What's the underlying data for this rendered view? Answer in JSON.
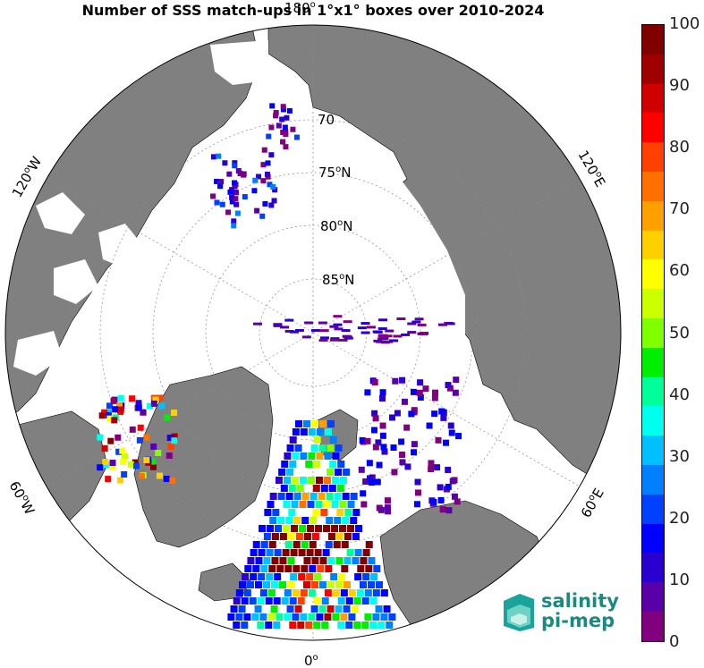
{
  "title": "Number of SSS match-ups in 1°x1° boxes over 2010-2024",
  "longitude_labels": {
    "top": "180",
    "left_upper": "120",
    "left_upper_dir": "W",
    "right_upper": "120",
    "right_upper_dir": "E",
    "left_lower": "60",
    "left_lower_dir": "W",
    "right_lower": "60",
    "right_lower_dir": "E",
    "bottom": "0"
  },
  "degree_sup": "o",
  "latitude_labels": [
    {
      "value": "70",
      "suffix": ""
    },
    {
      "value": "75",
      "suffix": "N"
    },
    {
      "value": "80",
      "suffix": "N"
    },
    {
      "value": "85",
      "suffix": "N"
    }
  ],
  "colorbar": {
    "ticks": [
      "100",
      "90",
      "80",
      "70",
      "60",
      "50",
      "40",
      "30",
      "20",
      "10",
      "0"
    ],
    "colors": [
      "#800080",
      "#5a00a8",
      "#2a00d0",
      "#0000ff",
      "#0040ff",
      "#0080ff",
      "#00c0ff",
      "#00ffee",
      "#00ff99",
      "#00ee00",
      "#80ff00",
      "#ccff00",
      "#ffff00",
      "#ffd000",
      "#ffa000",
      "#ff7000",
      "#ff4000",
      "#ff0000",
      "#d00000",
      "#a00000",
      "#800000"
    ]
  },
  "logo": {
    "line1": "salinity",
    "line2": "pi-mep"
  },
  "colors": {
    "land": "#808080",
    "ice": "#ffffff",
    "ocean": "#ffffff"
  }
}
